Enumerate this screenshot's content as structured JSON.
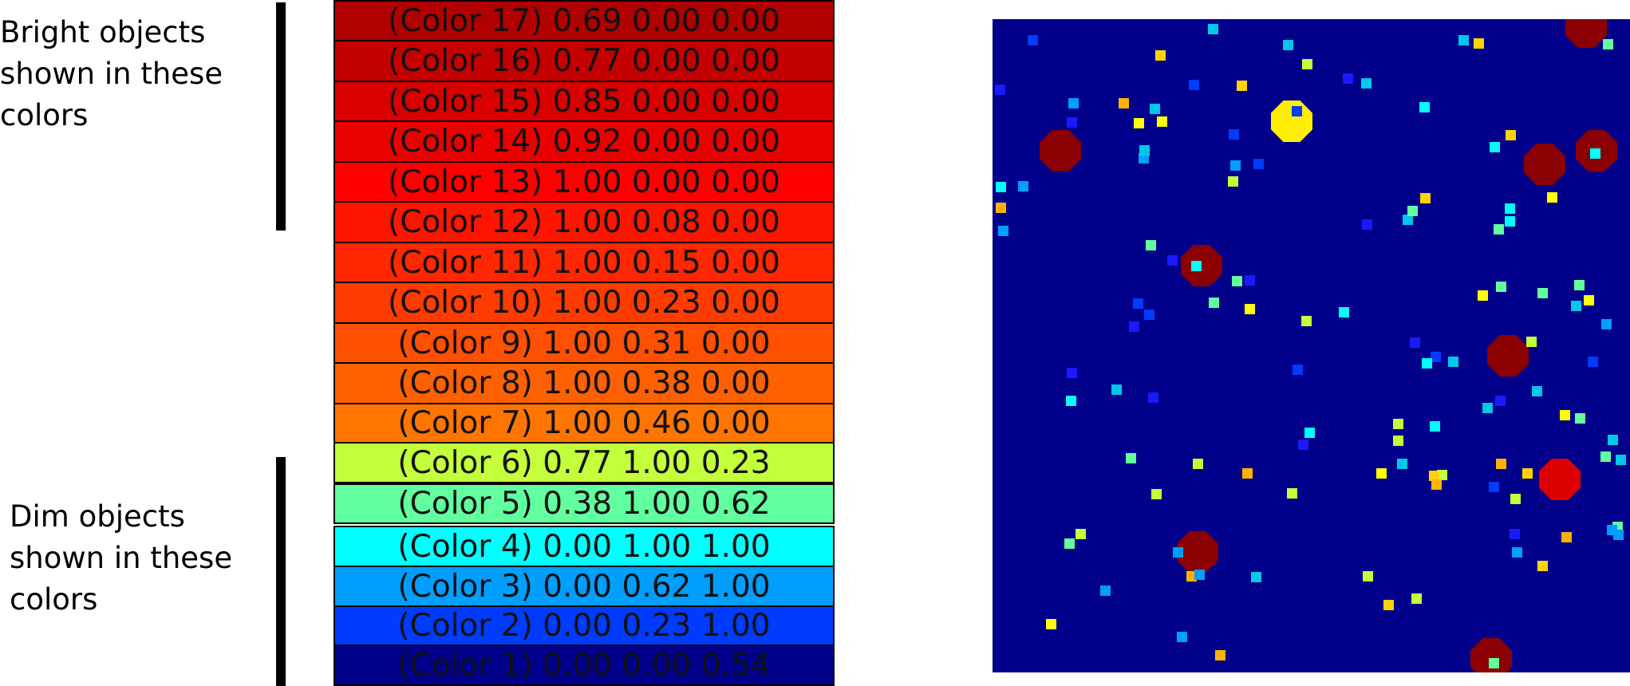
{
  "labels": {
    "bright": "Bright objects\nshown in these\ncolors",
    "dim": "Dim objects\nshown in these\ncolors"
  },
  "swatches": [
    {
      "text": "(Color 17) 0.69 0.00 0.00",
      "color": "#b00000"
    },
    {
      "text": "(Color 16) 0.77 0.00 0.00",
      "color": "#c40000"
    },
    {
      "text": "(Color 15) 0.85 0.00 0.00",
      "color": "#d90000"
    },
    {
      "text": "(Color 14) 0.92 0.00 0.00",
      "color": "#eb0000"
    },
    {
      "text": "(Color 13) 1.00 0.00 0.00",
      "color": "#ff0000"
    },
    {
      "text": "(Color 12) 1.00 0.08 0.00",
      "color": "#ff1400"
    },
    {
      "text": "(Color 11) 1.00 0.15 0.00",
      "color": "#ff2600"
    },
    {
      "text": "(Color 10) 1.00 0.23 0.00",
      "color": "#ff3b00"
    },
    {
      "text": "(Color 9) 1.00 0.31 0.00",
      "color": "#ff4f00"
    },
    {
      "text": "(Color 8) 1.00 0.38 0.00",
      "color": "#ff6100"
    },
    {
      "text": "(Color 7) 1.00 0.46 0.00",
      "color": "#ff7500"
    },
    {
      "text": "(Color 6) 0.77 1.00 0.23",
      "color": "#c4ff3b"
    },
    {
      "text": "(Color 5) 0.38 1.00 0.62",
      "color": "#61ff9e"
    },
    {
      "text": "(Color 4) 0.00 1.00 1.00",
      "color": "#00ffff"
    },
    {
      "text": "(Color 3) 0.00 0.62 1.00",
      "color": "#009eff"
    },
    {
      "text": "(Color 2) 0.00 0.23 1.00",
      "color": "#003bff"
    },
    {
      "text": "(Color 1) 0.00 0.00 0.54",
      "color": "#00008a"
    }
  ],
  "field": {
    "background": "#00008a",
    "big_colors": {
      "dark_red": "#8b0000",
      "red": "#dd0000",
      "yellow": "#ffee00"
    },
    "small_colors": [
      "#ffff00",
      "#ffd400",
      "#ffb300",
      "#c4ff3b",
      "#61ff9e",
      "#00ffff",
      "#00c8e8",
      "#009eff",
      "#003bff",
      "#1a1aff"
    ]
  }
}
